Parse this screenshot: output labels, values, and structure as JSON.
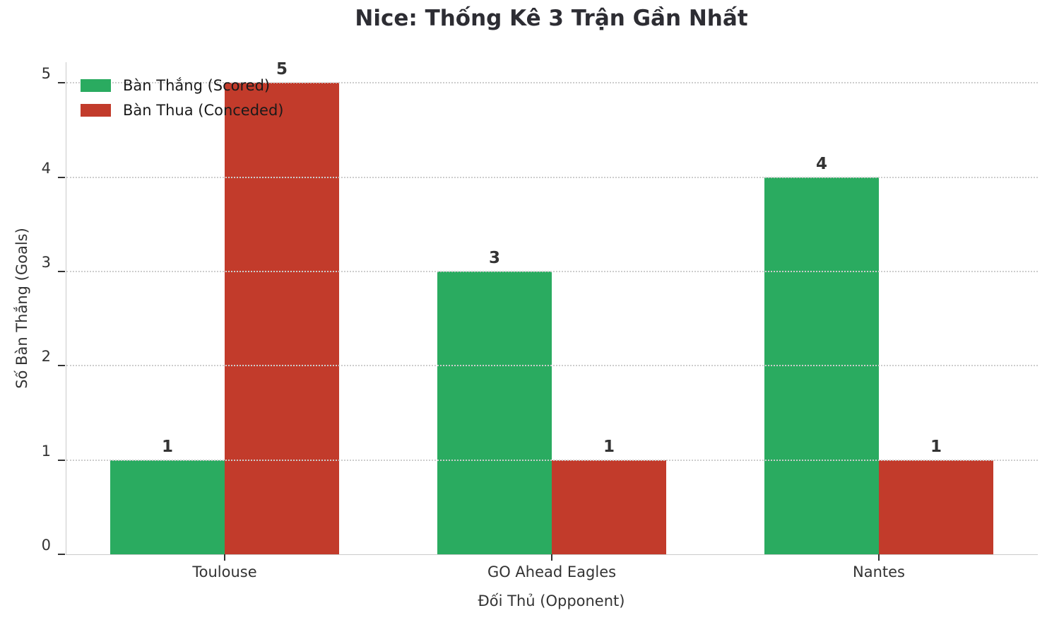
{
  "figure": {
    "title": "Nice: Thống Kê 3 Trận Gần Nhất",
    "xlabel": "Đối Thủ (Opponent)",
    "ylabel": "Số Bàn Thắng (Goals)"
  },
  "colors": {
    "scored_green": "#2aab60",
    "conceded_red": "#c23b2b",
    "text_dark": "#333333",
    "spine_grey": "#cbcbcb",
    "grid_grey": "#cdcdcd"
  },
  "chart_data": {
    "type": "bar",
    "title": "Nice: Thống Kê 3 Trận Gần Nhất",
    "xlabel": "Đối Thủ (Opponent)",
    "ylabel": "Số Bàn Thắng (Goals)",
    "categories": [
      "Toulouse",
      "GO Ahead Eagles",
      "Nantes"
    ],
    "series": [
      {
        "name": "Bàn Thắng (Scored)",
        "color": "#2aab60",
        "values": [
          1,
          3,
          4
        ]
      },
      {
        "name": "Bàn Thua (Conceded)",
        "color": "#c23b2b",
        "values": [
          5,
          1,
          1
        ]
      }
    ],
    "bar_value_labels": [
      [
        1,
        3,
        4
      ],
      [
        5,
        1,
        1
      ]
    ],
    "yticks": [
      0,
      1,
      2,
      3,
      4,
      5
    ],
    "ylim": [
      0,
      5.22
    ],
    "grid": "horizontal-dotted",
    "grid_above_bars": true,
    "legend_position": "upper-left",
    "legend_frame": false
  }
}
